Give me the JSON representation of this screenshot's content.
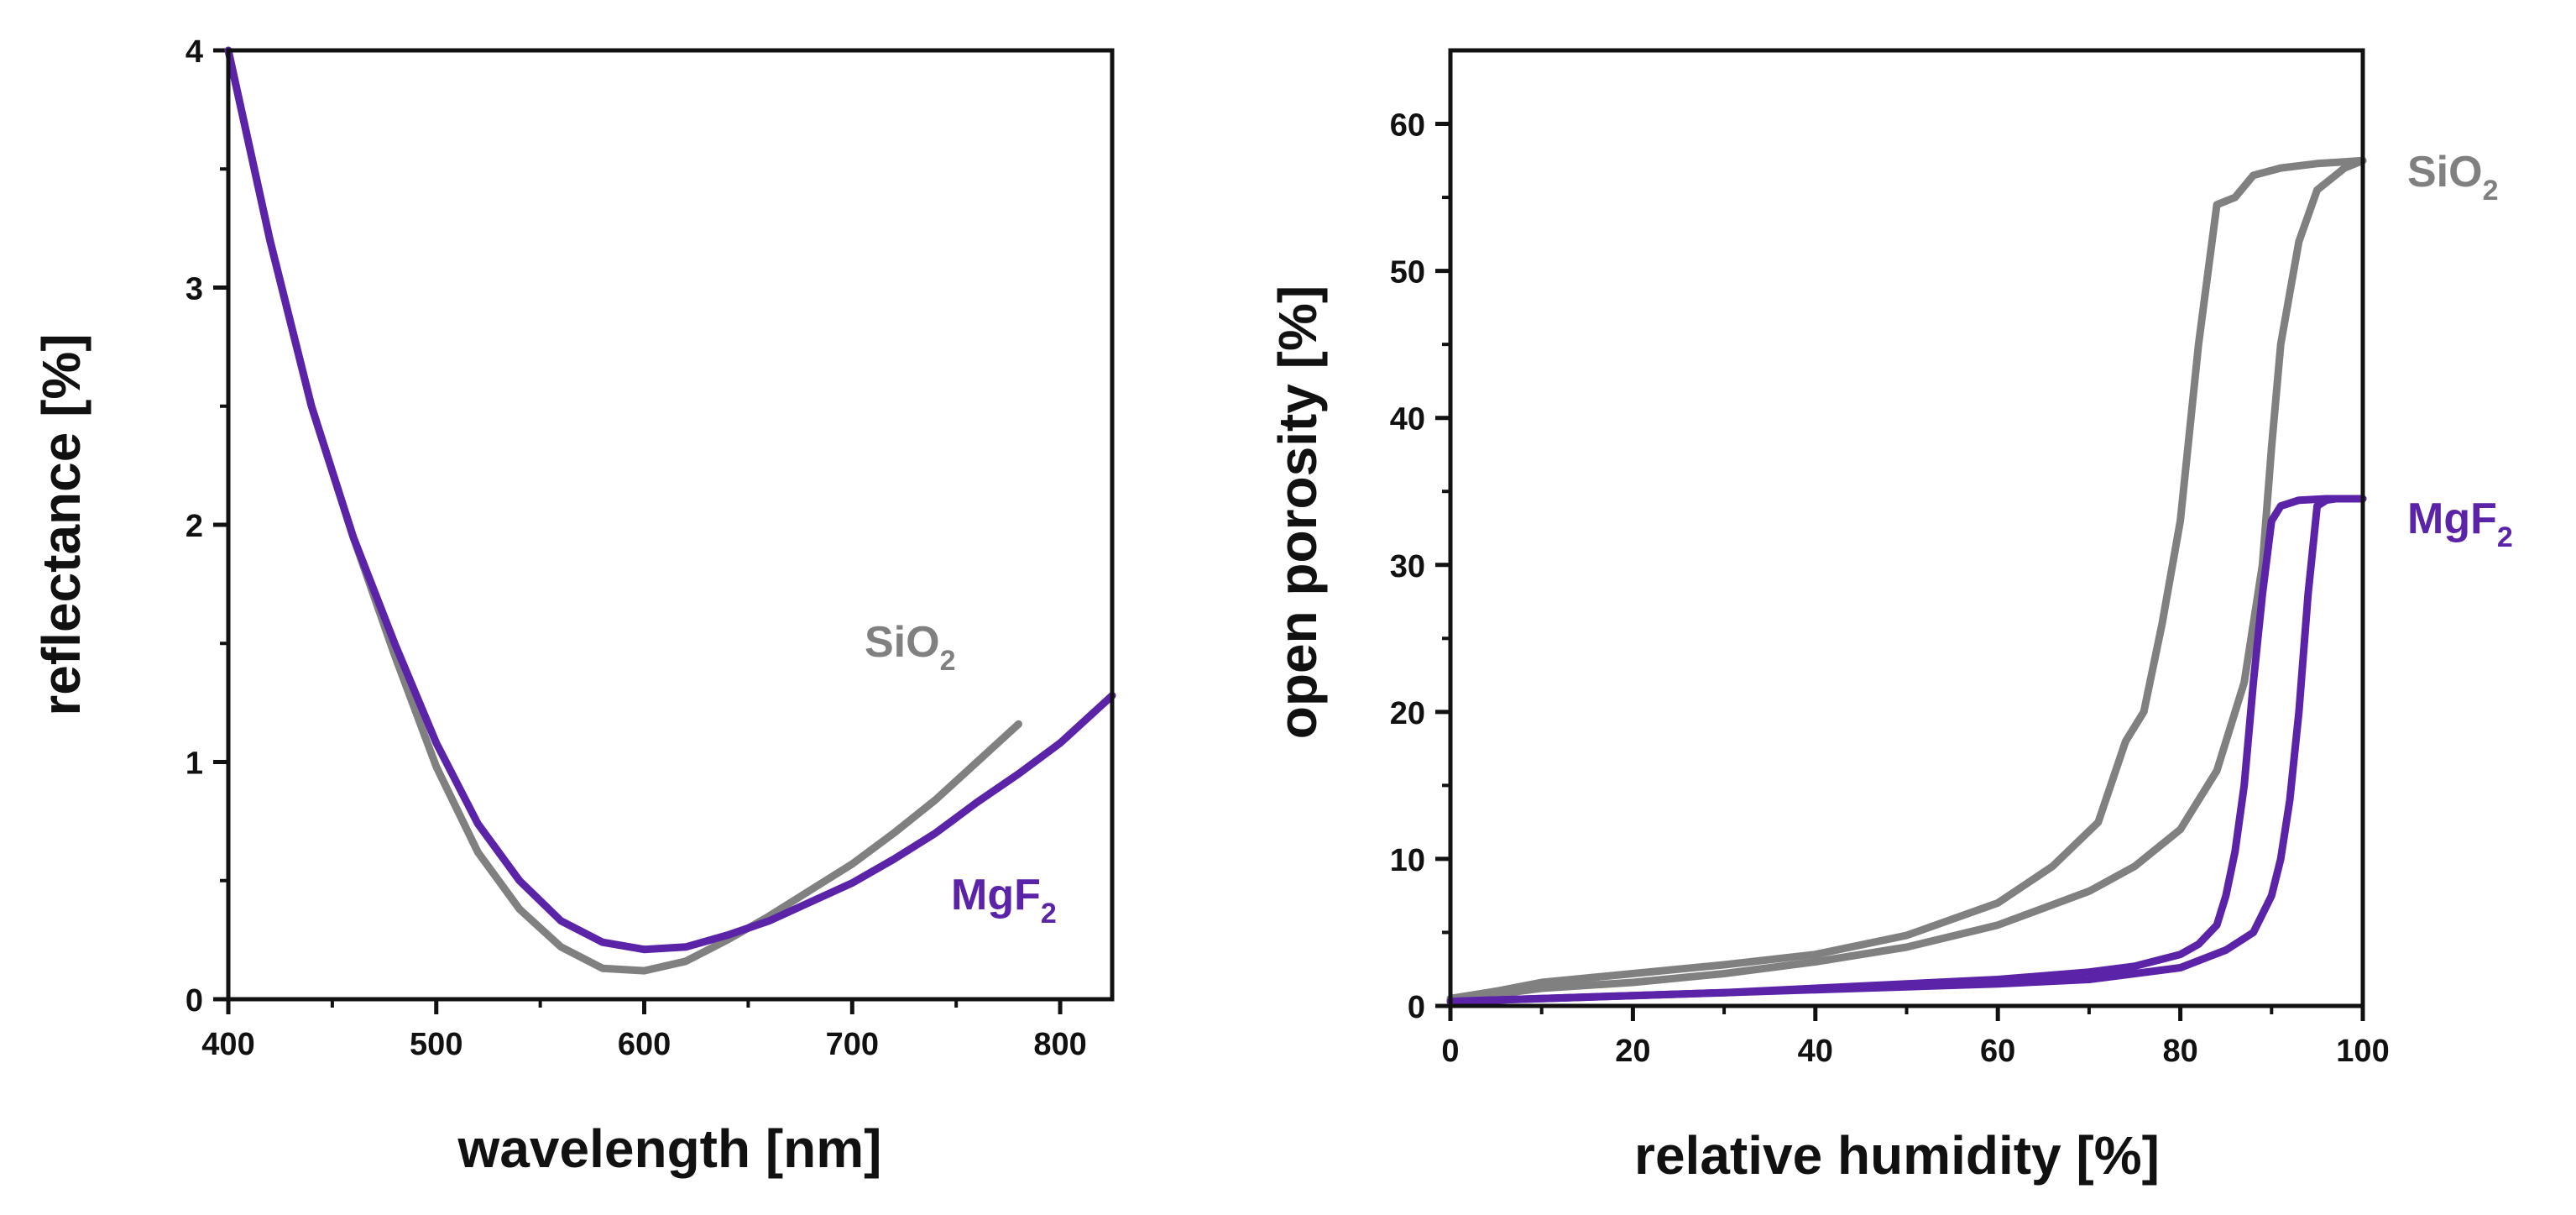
{
  "colors": {
    "sio2": "#808080",
    "mgf2": "#5b24a8",
    "axis": "#111111"
  },
  "chart_data": [
    {
      "type": "line",
      "id": "reflectance",
      "xlabel": "wavelength [nm]",
      "ylabel": "reflectance [%]",
      "xlim": [
        400,
        825
      ],
      "ylim": [
        0,
        4
      ],
      "xticks": [
        400,
        500,
        600,
        700,
        800
      ],
      "xtick_labels": [
        "400",
        "500",
        "600",
        "700",
        "800"
      ],
      "yticks": [
        0,
        1,
        2,
        3,
        4
      ],
      "ytick_labels": [
        "0",
        "1",
        "2",
        "3",
        "4"
      ],
      "series": [
        {
          "name": "SiO2",
          "label_main": "SiO",
          "label_sub": "2",
          "color_key": "sio2",
          "x": [
            400,
            420,
            440,
            460,
            480,
            500,
            520,
            540,
            560,
            580,
            600,
            620,
            640,
            660,
            680,
            700,
            720,
            740,
            760,
            780
          ],
          "y": [
            4.0,
            3.2,
            2.5,
            1.95,
            1.45,
            0.98,
            0.62,
            0.38,
            0.22,
            0.13,
            0.12,
            0.16,
            0.25,
            0.35,
            0.46,
            0.57,
            0.7,
            0.84,
            1.0,
            1.16
          ]
        },
        {
          "name": "MgF2",
          "label_main": "MgF",
          "label_sub": "2",
          "color_key": "mgf2",
          "x": [
            400,
            420,
            440,
            460,
            480,
            500,
            520,
            540,
            560,
            580,
            600,
            620,
            640,
            660,
            680,
            700,
            720,
            740,
            760,
            780,
            800,
            825
          ],
          "y": [
            4.0,
            3.2,
            2.5,
            1.95,
            1.5,
            1.08,
            0.74,
            0.5,
            0.33,
            0.24,
            0.21,
            0.22,
            0.27,
            0.33,
            0.41,
            0.49,
            0.59,
            0.7,
            0.83,
            0.95,
            1.08,
            1.28
          ]
        }
      ]
    },
    {
      "type": "line",
      "id": "porosity",
      "xlabel": "relative humidity [%]",
      "ylabel": "open porosity [%]",
      "xlim": [
        0,
        100
      ],
      "ylim": [
        0,
        65
      ],
      "xticks": [
        0,
        20,
        40,
        60,
        80,
        100
      ],
      "xtick_labels": [
        "0",
        "20",
        "40",
        "60",
        "80",
        "100"
      ],
      "yticks": [
        0,
        10,
        20,
        30,
        40,
        50,
        60
      ],
      "ytick_labels": [
        "0",
        "10",
        "20",
        "30",
        "40",
        "50",
        "60"
      ],
      "series": [
        {
          "name": "SiO2 adsorption",
          "color_key": "sio2",
          "x": [
            0,
            5,
            10,
            20,
            30,
            40,
            50,
            60,
            70,
            75,
            80,
            84,
            87,
            89,
            90,
            91,
            92,
            93,
            95,
            98,
            100
          ],
          "y": [
            0.4,
            0.8,
            1.2,
            1.6,
            2.2,
            3.0,
            4.0,
            5.5,
            7.8,
            9.5,
            12.0,
            16.0,
            22.0,
            30.0,
            38.0,
            45.0,
            48.5,
            52.0,
            55.5,
            57.0,
            57.5
          ]
        },
        {
          "name": "SiO2 desorption",
          "color_key": "sio2",
          "x": [
            100,
            95,
            91,
            88,
            86,
            84,
            82,
            80,
            78,
            76,
            74,
            71,
            66,
            60,
            50,
            40,
            30,
            20,
            10,
            5,
            0
          ],
          "y": [
            57.5,
            57.3,
            57.0,
            56.5,
            55.0,
            54.5,
            45.0,
            33.0,
            26.0,
            20.0,
            18.0,
            12.5,
            9.5,
            7.0,
            4.8,
            3.5,
            2.8,
            2.2,
            1.6,
            1.0,
            0.5
          ]
        },
        {
          "name": "MgF2 adsorption",
          "color_key": "mgf2",
          "x": [
            0,
            10,
            20,
            30,
            40,
            50,
            60,
            70,
            80,
            85,
            88,
            90,
            91,
            92,
            93,
            94,
            95,
            96,
            97,
            98,
            100
          ],
          "y": [
            0.3,
            0.5,
            0.7,
            0.9,
            1.1,
            1.3,
            1.5,
            1.8,
            2.6,
            3.8,
            5.0,
            7.5,
            10.0,
            14.0,
            20.0,
            28.0,
            34.0,
            34.4,
            34.5,
            34.5,
            34.5
          ]
        },
        {
          "name": "MgF2 desorption",
          "color_key": "mgf2",
          "x": [
            100,
            96,
            93,
            91,
            90,
            89,
            88,
            87,
            86,
            85,
            84,
            82,
            80,
            75,
            70,
            60,
            50,
            40,
            30,
            20,
            10,
            0
          ],
          "y": [
            34.5,
            34.5,
            34.4,
            34.0,
            33.0,
            28.0,
            22.0,
            15.0,
            10.5,
            7.5,
            5.5,
            4.2,
            3.5,
            2.7,
            2.3,
            1.8,
            1.5,
            1.2,
            0.9,
            0.7,
            0.5,
            0.3
          ]
        }
      ],
      "labels": [
        {
          "name": "SiO2",
          "label_main": "SiO",
          "label_sub": "2",
          "color_key": "sio2"
        },
        {
          "name": "MgF2",
          "label_main": "MgF",
          "label_sub": "2",
          "color_key": "mgf2"
        }
      ]
    }
  ]
}
